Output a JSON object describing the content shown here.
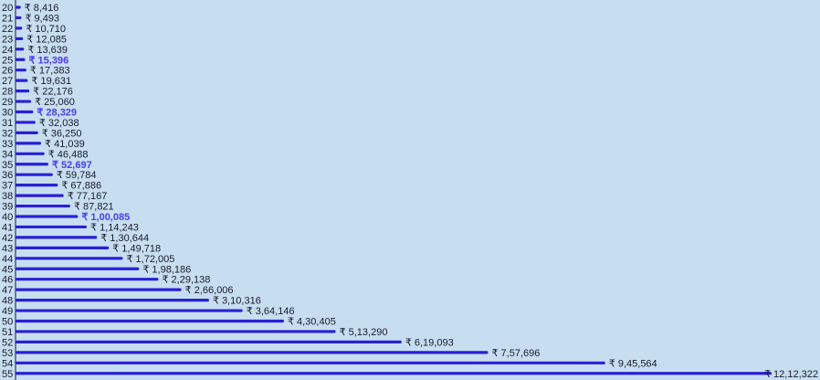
{
  "chart_data": {
    "type": "bar",
    "orientation": "horizontal",
    "categories": [
      "20",
      "21",
      "22",
      "23",
      "24",
      "25",
      "26",
      "27",
      "28",
      "29",
      "30",
      "31",
      "32",
      "33",
      "34",
      "35",
      "36",
      "37",
      "38",
      "39",
      "40",
      "41",
      "42",
      "43",
      "44",
      "45",
      "46",
      "47",
      "48",
      "49",
      "50",
      "51",
      "52",
      "53",
      "54",
      "55"
    ],
    "values": [
      8416,
      9493,
      10710,
      12085,
      13639,
      15396,
      17383,
      19631,
      22176,
      25060,
      28329,
      32038,
      36250,
      41039,
      46488,
      52697,
      59784,
      67886,
      77167,
      87821,
      100085,
      114243,
      130644,
      149718,
      172005,
      198186,
      229138,
      266006,
      310316,
      364146,
      430405,
      513290,
      619093,
      757696,
      945564,
      1212322
    ],
    "labels": [
      "₹ 8,416",
      "₹ 9,493",
      "₹ 10,710",
      "₹ 12,085",
      "₹ 13,639",
      "₹ 15,396",
      "₹ 17,383",
      "₹ 19,631",
      "₹ 22,176",
      "₹ 25,060",
      "₹ 28,329",
      "₹ 32,038",
      "₹ 36,250",
      "₹ 41,039",
      "₹ 46,488",
      "₹ 52,697",
      "₹ 59,784",
      "₹ 67,886",
      "₹ 77,167",
      "₹ 87,821",
      "₹ 1,00,085",
      "₹ 1,14,243",
      "₹ 1,30,644",
      "₹ 1,49,718",
      "₹ 1,72,005",
      "₹ 1,98,186",
      "₹ 2,29,138",
      "₹ 2,66,006",
      "₹ 3,10,316",
      "₹ 3,64,146",
      "₹ 4,30,405",
      "₹ 5,13,290",
      "₹ 6,19,093",
      "₹ 7,57,696",
      "₹ 9,45,564",
      "₹ 12,12,322"
    ],
    "highlighted": [
      "25",
      "30",
      "35",
      "40"
    ],
    "title": "",
    "xlabel": "",
    "ylabel": "",
    "grid": false,
    "colors": {
      "bar": "#2a1fd6",
      "highlight_text": "#4a3df0",
      "text": "#1a1a2e",
      "background": "#c7def0"
    }
  }
}
